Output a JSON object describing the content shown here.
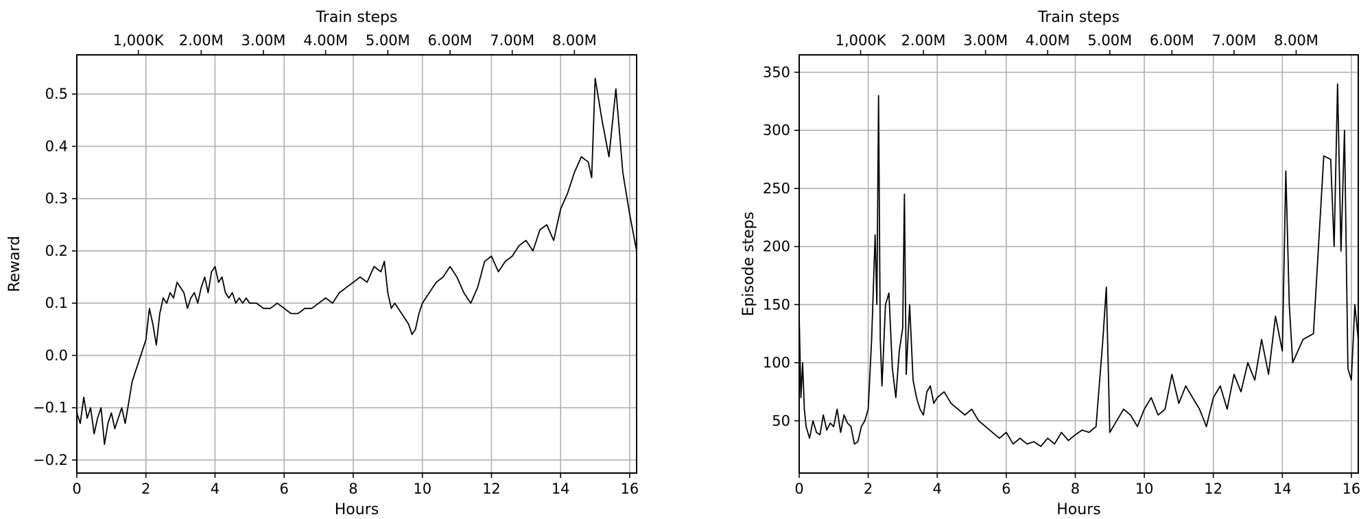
{
  "chart_data": [
    {
      "type": "line",
      "xlabel": "Hours",
      "ylabel": "Reward",
      "top_axis_label": "Train steps",
      "top_ticks": [
        {
          "hours": 1.78,
          "label": "1,000K"
        },
        {
          "hours": 3.6,
          "label": "2.00M"
        },
        {
          "hours": 5.4,
          "label": "3.00M"
        },
        {
          "hours": 7.2,
          "label": "4.00M"
        },
        {
          "hours": 9.0,
          "label": "5.00M"
        },
        {
          "hours": 10.8,
          "label": "6.00M"
        },
        {
          "hours": 12.6,
          "label": "7.00M"
        },
        {
          "hours": 14.4,
          "label": "8.00M"
        }
      ],
      "xlim": [
        0,
        16.2
      ],
      "ylim": [
        -0.225,
        0.575
      ],
      "xticks": [
        {
          "v": 0,
          "label": "0"
        },
        {
          "v": 2,
          "label": "2"
        },
        {
          "v": 4,
          "label": "4"
        },
        {
          "v": 6,
          "label": "6"
        },
        {
          "v": 8,
          "label": "8"
        },
        {
          "v": 10,
          "label": "10"
        },
        {
          "v": 12,
          "label": "12"
        },
        {
          "v": 14,
          "label": "14"
        },
        {
          "v": 16,
          "label": "16"
        }
      ],
      "yticks": [
        {
          "v": -0.2,
          "label": "−0.2"
        },
        {
          "v": -0.1,
          "label": "−0.1"
        },
        {
          "v": 0.0,
          "label": "0.0"
        },
        {
          "v": 0.1,
          "label": "0.1"
        },
        {
          "v": 0.2,
          "label": "0.2"
        },
        {
          "v": 0.3,
          "label": "0.3"
        },
        {
          "v": 0.4,
          "label": "0.4"
        },
        {
          "v": 0.5,
          "label": "0.5"
        }
      ],
      "grid": true,
      "line_color": "#000000",
      "x": [
        0,
        0.1,
        0.2,
        0.3,
        0.4,
        0.5,
        0.6,
        0.7,
        0.8,
        0.9,
        1.0,
        1.1,
        1.2,
        1.3,
        1.4,
        1.5,
        1.6,
        1.7,
        1.8,
        1.9,
        2.0,
        2.1,
        2.2,
        2.3,
        2.4,
        2.5,
        2.6,
        2.7,
        2.8,
        2.9,
        3.0,
        3.1,
        3.2,
        3.3,
        3.4,
        3.5,
        3.6,
        3.7,
        3.8,
        3.9,
        4.0,
        4.1,
        4.2,
        4.3,
        4.4,
        4.5,
        4.6,
        4.7,
        4.8,
        4.9,
        5.0,
        5.2,
        5.4,
        5.6,
        5.8,
        6.0,
        6.2,
        6.4,
        6.6,
        6.8,
        7.0,
        7.2,
        7.4,
        7.6,
        7.8,
        8.0,
        8.2,
        8.4,
        8.6,
        8.8,
        8.9,
        9.0,
        9.1,
        9.2,
        9.4,
        9.6,
        9.7,
        9.8,
        9.9,
        10.0,
        10.2,
        10.4,
        10.6,
        10.8,
        11.0,
        11.2,
        11.4,
        11.6,
        11.8,
        12.0,
        12.2,
        12.4,
        12.6,
        12.8,
        13.0,
        13.2,
        13.4,
        13.6,
        13.8,
        14.0,
        14.2,
        14.4,
        14.6,
        14.8,
        14.9,
        15.0,
        15.2,
        15.4,
        15.6,
        15.8,
        16.0,
        16.2
      ],
      "y": [
        -0.11,
        -0.13,
        -0.08,
        -0.12,
        -0.1,
        -0.15,
        -0.12,
        -0.1,
        -0.17,
        -0.13,
        -0.11,
        -0.14,
        -0.12,
        -0.1,
        -0.13,
        -0.09,
        -0.05,
        -0.03,
        -0.01,
        0.01,
        0.03,
        0.09,
        0.06,
        0.02,
        0.08,
        0.11,
        0.1,
        0.12,
        0.11,
        0.14,
        0.13,
        0.12,
        0.09,
        0.11,
        0.12,
        0.1,
        0.13,
        0.15,
        0.12,
        0.16,
        0.17,
        0.14,
        0.15,
        0.12,
        0.11,
        0.12,
        0.1,
        0.11,
        0.1,
        0.11,
        0.1,
        0.1,
        0.09,
        0.09,
        0.1,
        0.09,
        0.08,
        0.08,
        0.09,
        0.09,
        0.1,
        0.11,
        0.1,
        0.12,
        0.13,
        0.14,
        0.15,
        0.14,
        0.17,
        0.16,
        0.18,
        0.12,
        0.09,
        0.1,
        0.08,
        0.06,
        0.04,
        0.05,
        0.08,
        0.1,
        0.12,
        0.14,
        0.15,
        0.17,
        0.15,
        0.12,
        0.1,
        0.13,
        0.18,
        0.19,
        0.16,
        0.18,
        0.19,
        0.21,
        0.22,
        0.2,
        0.24,
        0.25,
        0.22,
        0.28,
        0.31,
        0.35,
        0.38,
        0.37,
        0.34,
        0.53,
        0.45,
        0.38,
        0.51,
        0.35,
        0.27,
        0.2
      ]
    },
    {
      "type": "line",
      "xlabel": "Hours",
      "ylabel": "Episode steps",
      "top_axis_label": "Train steps",
      "top_ticks": [
        {
          "hours": 1.78,
          "label": "1,000K"
        },
        {
          "hours": 3.6,
          "label": "2.00M"
        },
        {
          "hours": 5.4,
          "label": "3.00M"
        },
        {
          "hours": 7.2,
          "label": "4.00M"
        },
        {
          "hours": 9.0,
          "label": "5.00M"
        },
        {
          "hours": 10.8,
          "label": "6.00M"
        },
        {
          "hours": 12.6,
          "label": "7.00M"
        },
        {
          "hours": 14.4,
          "label": "8.00M"
        }
      ],
      "xlim": [
        0,
        16.2
      ],
      "ylim": [
        5,
        365
      ],
      "xticks": [
        {
          "v": 0,
          "label": "0"
        },
        {
          "v": 2,
          "label": "2"
        },
        {
          "v": 4,
          "label": "4"
        },
        {
          "v": 6,
          "label": "6"
        },
        {
          "v": 8,
          "label": "8"
        },
        {
          "v": 10,
          "label": "10"
        },
        {
          "v": 12,
          "label": "12"
        },
        {
          "v": 14,
          "label": "14"
        },
        {
          "v": 16,
          "label": "16"
        }
      ],
      "yticks": [
        {
          "v": 50,
          "label": "50"
        },
        {
          "v": 100,
          "label": "100"
        },
        {
          "v": 150,
          "label": "150"
        },
        {
          "v": 200,
          "label": "200"
        },
        {
          "v": 250,
          "label": "250"
        },
        {
          "v": 300,
          "label": "300"
        },
        {
          "v": 350,
          "label": "350"
        }
      ],
      "grid": true,
      "line_color": "#000000",
      "x": [
        0,
        0.05,
        0.1,
        0.15,
        0.2,
        0.3,
        0.4,
        0.5,
        0.6,
        0.7,
        0.8,
        0.9,
        1.0,
        1.1,
        1.2,
        1.3,
        1.4,
        1.5,
        1.6,
        1.7,
        1.8,
        1.9,
        2.0,
        2.1,
        2.2,
        2.25,
        2.3,
        2.35,
        2.4,
        2.5,
        2.6,
        2.7,
        2.8,
        2.9,
        3.0,
        3.05,
        3.1,
        3.2,
        3.3,
        3.4,
        3.5,
        3.6,
        3.7,
        3.8,
        3.9,
        4.0,
        4.2,
        4.4,
        4.6,
        4.8,
        5.0,
        5.2,
        5.4,
        5.6,
        5.8,
        6.0,
        6.2,
        6.4,
        6.6,
        6.8,
        7.0,
        7.2,
        7.4,
        7.6,
        7.8,
        8.0,
        8.2,
        8.4,
        8.6,
        8.8,
        8.9,
        9.0,
        9.2,
        9.4,
        9.6,
        9.8,
        10.0,
        10.2,
        10.4,
        10.6,
        10.8,
        11.0,
        11.2,
        11.4,
        11.6,
        11.8,
        12.0,
        12.2,
        12.4,
        12.6,
        12.8,
        13.0,
        13.2,
        13.4,
        13.6,
        13.8,
        14.0,
        14.1,
        14.2,
        14.3,
        14.6,
        14.9,
        15.2,
        15.4,
        15.5,
        15.6,
        15.7,
        15.8,
        15.9,
        16.0,
        16.1,
        16.2
      ],
      "y": [
        140,
        70,
        100,
        60,
        45,
        35,
        50,
        40,
        38,
        55,
        42,
        48,
        45,
        60,
        40,
        55,
        48,
        45,
        30,
        32,
        45,
        50,
        60,
        120,
        210,
        150,
        330,
        120,
        80,
        150,
        160,
        95,
        70,
        110,
        130,
        245,
        90,
        150,
        85,
        70,
        60,
        55,
        75,
        80,
        65,
        70,
        75,
        65,
        60,
        55,
        60,
        50,
        45,
        40,
        35,
        40,
        30,
        35,
        30,
        32,
        28,
        35,
        30,
        40,
        33,
        38,
        42,
        40,
        45,
        120,
        165,
        40,
        50,
        60,
        55,
        45,
        60,
        70,
        55,
        60,
        90,
        65,
        80,
        70,
        60,
        45,
        70,
        80,
        60,
        90,
        75,
        100,
        85,
        120,
        90,
        140,
        110,
        265,
        150,
        100,
        120,
        125,
        278,
        275,
        200,
        340,
        196,
        300,
        95,
        85,
        150,
        120
      ]
    }
  ]
}
